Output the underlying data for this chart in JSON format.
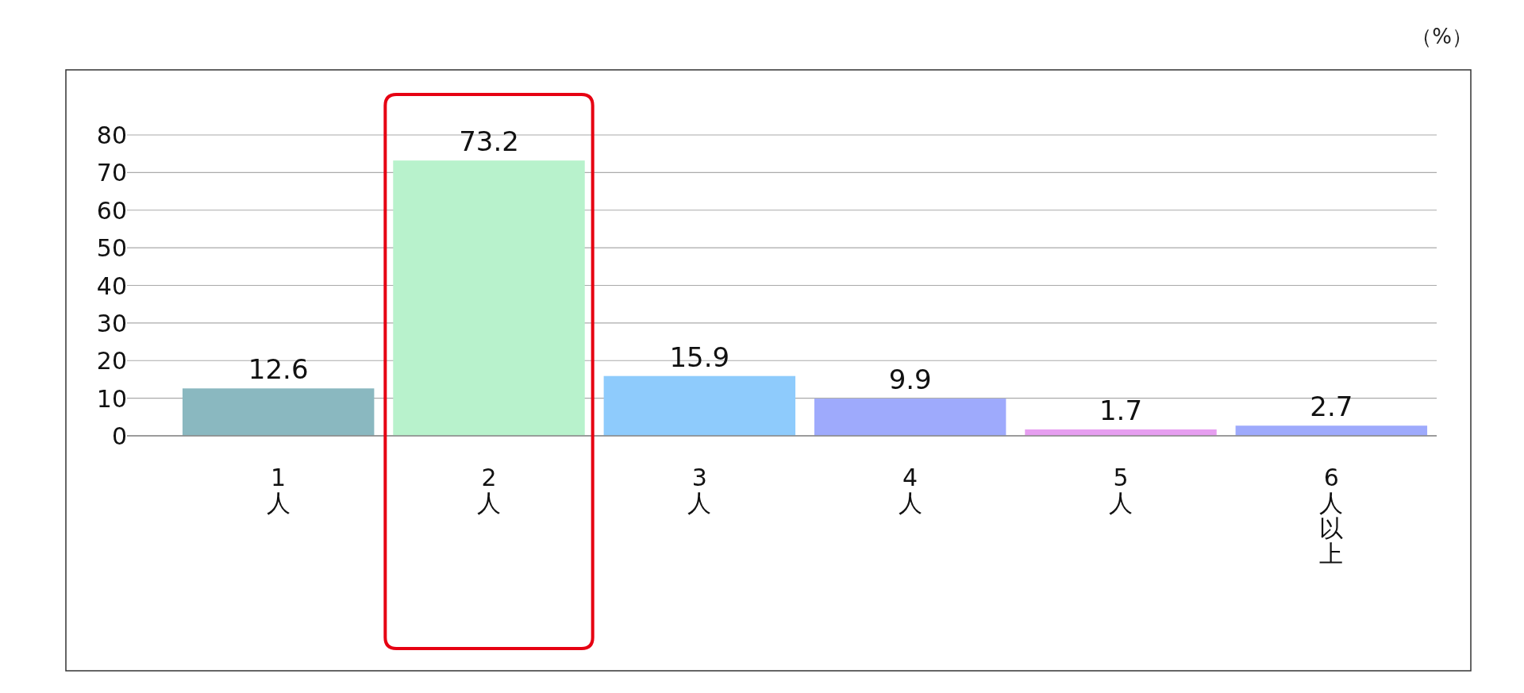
{
  "chart_data": {
    "type": "bar",
    "ylabel": "（%）",
    "categories": [
      "1人",
      "2人",
      "3人",
      "4人",
      "5人",
      "6人以上"
    ],
    "values": [
      12.6,
      73.2,
      15.9,
      9.9,
      1.7,
      2.7
    ],
    "colors": [
      "#8ab8c0",
      "#b8f2cc",
      "#8ecbfc",
      "#9eaafc",
      "#e69ef0",
      "#9eaafc"
    ],
    "ylim": [
      0,
      80
    ],
    "yticks": [
      0,
      10,
      20,
      30,
      40,
      50,
      60,
      70,
      80
    ],
    "grid": "y",
    "data_labels": true,
    "bands": [
      {
        "axis": "x",
        "from": "2人",
        "to": "2人",
        "color": "#e60012"
      }
    ]
  }
}
